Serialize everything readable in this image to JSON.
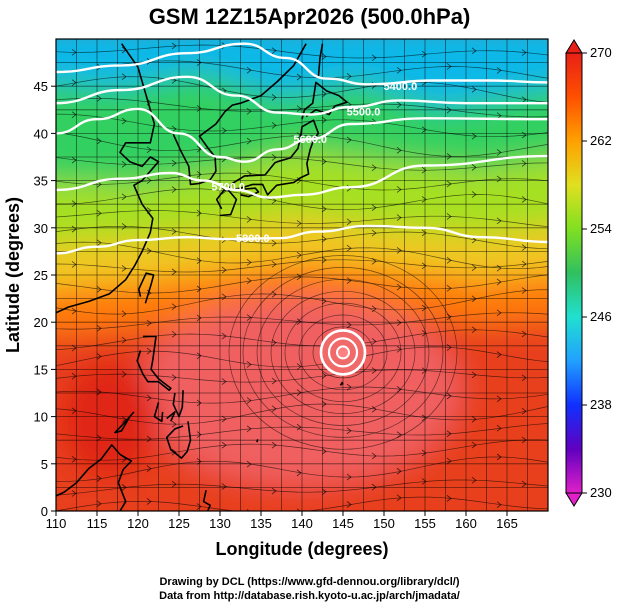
{
  "title": "GSM 12Z15Apr2026 (500.0hPa)",
  "chart_data": {
    "type": "heatmap",
    "title": "GSM 12Z15Apr2026 (500.0hPa)",
    "xlabel": "Longitude (degrees)",
    "ylabel": "Latitude  (degrees)",
    "xlim": [
      110,
      170
    ],
    "ylim": [
      0,
      50
    ],
    "x_ticks": [
      "110",
      "115",
      "120",
      "125",
      "130",
      "135",
      "140",
      "145",
      "150",
      "155",
      "160",
      "165"
    ],
    "y_ticks": [
      "0",
      "5",
      "10",
      "15",
      "20",
      "25",
      "30",
      "35",
      "40",
      "45"
    ],
    "grid": true,
    "colorbar": {
      "ticks": [
        "270",
        "262",
        "254",
        "246",
        "238",
        "230"
      ],
      "range": [
        230,
        270
      ],
      "colors": [
        "#e020c8",
        "#6000c0",
        "#1030ff",
        "#20a0ff",
        "#20e0d0",
        "#30c060",
        "#80e020",
        "#e0e020",
        "#ffa000",
        "#ff5000",
        "#e82018"
      ]
    },
    "contours": [
      {
        "label": "5400.0",
        "label_lon": 152,
        "label_lat": 45,
        "lons": [
          110,
          118,
          126,
          133,
          138,
          143,
          148,
          156,
          163,
          170
        ],
        "lats": [
          46.5,
          47.2,
          48.5,
          49.5,
          48.0,
          45.8,
          45.2,
          45.6,
          45.6,
          45.4
        ]
      },
      {
        "label": "5500.0",
        "label_lon": 147.5,
        "label_lat": 42.3,
        "lons": [
          110,
          118,
          126,
          132,
          137,
          141,
          146,
          152,
          160,
          170
        ],
        "lats": [
          43.2,
          44.6,
          46.0,
          44.0,
          42.2,
          42.0,
          42.8,
          43.5,
          43.2,
          43.2
        ]
      },
      {
        "label": "5600.0",
        "label_lon": 141,
        "label_lat": 39.4,
        "lons": [
          110,
          115,
          120,
          125,
          130,
          133,
          137,
          141,
          146,
          155,
          170
        ],
        "lats": [
          40.0,
          41.5,
          42.6,
          40.0,
          37.5,
          37.0,
          38.3,
          39.4,
          41.0,
          41.6,
          41.5
        ]
      },
      {
        "label": "5700.0",
        "label_lon": 131,
        "label_lat": 34.4,
        "lons": [
          110,
          118,
          124,
          128,
          132,
          136,
          140,
          146,
          155,
          170
        ],
        "lats": [
          34.0,
          35.2,
          35.8,
          35.0,
          34.0,
          33.2,
          33.5,
          34.3,
          36.6,
          37.6
        ]
      },
      {
        "label": "5800.0",
        "label_lon": 134,
        "label_lat": 28.9,
        "lons": [
          110,
          115,
          120,
          126,
          131,
          137,
          142,
          148,
          155,
          162,
          170
        ],
        "lats": [
          27.3,
          28.0,
          28.7,
          29.0,
          28.8,
          28.9,
          29.6,
          30.2,
          30.0,
          29.0,
          28.5
        ]
      }
    ],
    "low_center": {
      "lon": 145,
      "lat": 16.8
    }
  },
  "credits": {
    "line1": "Drawing by DCL (https://www.gfd-dennou.org/library/dcl/)",
    "line2": "Data from http://database.rish.kyoto-u.ac.jp/arch/jmadata/"
  }
}
